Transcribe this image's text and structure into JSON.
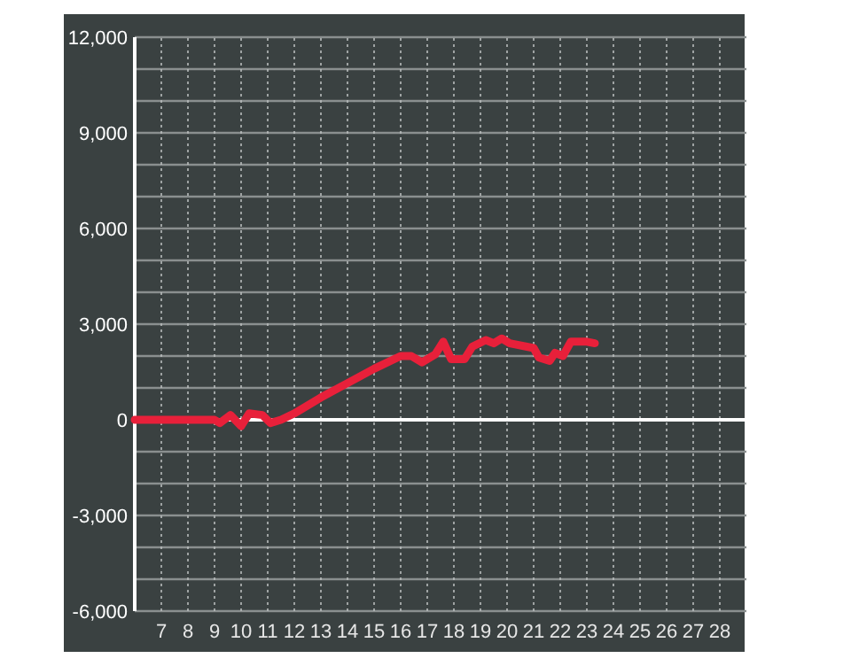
{
  "chart_data": {
    "type": "line",
    "xlim": [
      6,
      29
    ],
    "xticks": [
      7,
      8,
      9,
      10,
      11,
      12,
      13,
      14,
      15,
      16,
      17,
      18,
      19,
      20,
      21,
      22,
      23,
      24,
      25,
      26,
      27,
      28
    ],
    "ylim": [
      -6000,
      12000
    ],
    "yticks": [
      {
        "value": -6000,
        "label": "-6,000"
      },
      {
        "value": -5000,
        "label": null
      },
      {
        "value": -4000,
        "label": null
      },
      {
        "value": -3000,
        "label": "-3,000"
      },
      {
        "value": -2000,
        "label": null
      },
      {
        "value": -1000,
        "label": null
      },
      {
        "value": 0,
        "label": "0"
      },
      {
        "value": 1000,
        "label": null
      },
      {
        "value": 2000,
        "label": null
      },
      {
        "value": 3000,
        "label": "3,000"
      },
      {
        "value": 4000,
        "label": null
      },
      {
        "value": 5000,
        "label": null
      },
      {
        "value": 6000,
        "label": "6,000"
      },
      {
        "value": 7000,
        "label": null
      },
      {
        "value": 8000,
        "label": null
      },
      {
        "value": 9000,
        "label": "9,000"
      },
      {
        "value": 10000,
        "label": null
      },
      {
        "value": 11000,
        "label": null
      },
      {
        "value": 12000,
        "label": "12,000"
      }
    ],
    "grid": true,
    "marker": "none",
    "line_style": "solid",
    "series": [
      {
        "color": "#e8203a",
        "x": [
          6,
          9,
          9.2,
          9.6,
          10,
          10.3,
          10.8,
          11.1,
          11.5,
          12,
          13,
          14,
          15,
          16,
          16.4,
          16.8,
          17.3,
          17.6,
          17.9,
          18.4,
          18.7,
          19.2,
          19.5,
          19.8,
          20.1,
          21,
          21.2,
          21.6,
          21.8,
          22.1,
          22.4,
          23,
          23.3
        ],
        "values": [
          0,
          0,
          -100,
          150,
          -200,
          200,
          150,
          -100,
          0,
          200,
          700,
          1150,
          1600,
          2000,
          2000,
          1800,
          2050,
          2450,
          1900,
          1900,
          2300,
          2500,
          2400,
          2550,
          2400,
          2250,
          1950,
          1850,
          2100,
          2000,
          2450,
          2450,
          2400
        ]
      }
    ]
  }
}
